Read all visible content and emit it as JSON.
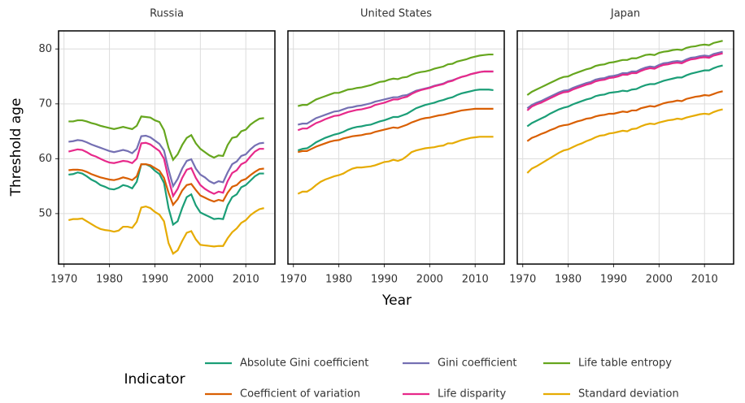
{
  "chart_data": {
    "type": "line",
    "facets": [
      "Russia",
      "United States",
      "Japan"
    ],
    "x_label": "Year",
    "y_label": "Threshold age",
    "legend_title": "Indicator",
    "legend": "bottom",
    "grid": true,
    "xlim": [
      1968.8,
      2016.4
    ],
    "ylim": [
      40.8,
      83.3
    ],
    "xticks": [
      1970,
      1980,
      1990,
      2000,
      2010
    ],
    "yticks": [
      50,
      60,
      70,
      80
    ],
    "x": [
      1971,
      1972,
      1973,
      1974,
      1975,
      1976,
      1977,
      1978,
      1979,
      1980,
      1981,
      1982,
      1983,
      1984,
      1985,
      1986,
      1987,
      1988,
      1989,
      1990,
      1991,
      1992,
      1993,
      1994,
      1995,
      1996,
      1997,
      1998,
      1999,
      2000,
      2001,
      2002,
      2003,
      2004,
      2005,
      2006,
      2007,
      2008,
      2009,
      2010,
      2011,
      2012,
      2013,
      2014
    ],
    "series": [
      {
        "name": "Absolute Gini coefficient",
        "color": "#1b9e77",
        "values": [
          [
            57.1,
            57.2,
            57.5,
            57.3,
            56.8,
            56.2,
            55.8,
            55.2,
            54.9,
            54.5,
            54.4,
            54.7,
            55.2,
            55.0,
            54.6,
            55.8,
            59.0,
            59.0,
            58.6,
            57.8,
            57.2,
            55.6,
            51.0,
            48.0,
            48.6,
            51.0,
            53.0,
            53.5,
            51.5,
            50.2,
            49.8,
            49.4,
            49.0,
            49.1,
            49.0,
            51.5,
            53.0,
            53.5,
            54.8,
            55.2,
            56.0,
            56.8,
            57.3,
            57.3
          ],
          [
            61.5,
            61.8,
            61.9,
            62.4,
            63.0,
            63.4,
            63.8,
            64.1,
            64.4,
            64.6,
            64.9,
            65.3,
            65.6,
            65.8,
            65.9,
            66.1,
            66.2,
            66.5,
            66.8,
            67.0,
            67.3,
            67.6,
            67.6,
            67.9,
            68.2,
            68.7,
            69.2,
            69.5,
            69.8,
            70.0,
            70.2,
            70.5,
            70.7,
            71.0,
            71.2,
            71.6,
            71.9,
            72.1,
            72.3,
            72.5,
            72.6,
            72.6,
            72.6,
            72.5
          ],
          [
            65.9,
            66.5,
            66.9,
            67.3,
            67.7,
            68.2,
            68.6,
            69.0,
            69.3,
            69.5,
            69.9,
            70.2,
            70.5,
            70.8,
            71.0,
            71.4,
            71.6,
            71.7,
            72.0,
            72.1,
            72.2,
            72.4,
            72.3,
            72.6,
            72.7,
            73.1,
            73.4,
            73.6,
            73.6,
            73.9,
            74.2,
            74.4,
            74.6,
            74.8,
            74.8,
            75.2,
            75.5,
            75.7,
            75.9,
            76.1,
            76.1,
            76.5,
            76.8,
            77.0
          ]
        ]
      },
      {
        "name": "Coefficient of variation",
        "color": "#d95f02",
        "values": [
          [
            57.9,
            58.0,
            58.0,
            57.9,
            57.6,
            57.2,
            56.9,
            56.6,
            56.4,
            56.2,
            56.1,
            56.3,
            56.6,
            56.4,
            56.1,
            56.8,
            59.0,
            59.0,
            58.8,
            58.3,
            57.8,
            56.5,
            53.8,
            51.6,
            52.6,
            54.2,
            55.2,
            55.4,
            54.3,
            53.3,
            52.9,
            52.5,
            52.2,
            52.5,
            52.3,
            53.8,
            54.9,
            55.2,
            56.0,
            56.3,
            57.0,
            57.6,
            58.1,
            58.2
          ],
          [
            61.2,
            61.4,
            61.4,
            61.8,
            62.2,
            62.5,
            62.8,
            63.1,
            63.3,
            63.4,
            63.7,
            63.9,
            64.1,
            64.2,
            64.3,
            64.5,
            64.6,
            64.9,
            65.1,
            65.3,
            65.5,
            65.7,
            65.6,
            65.9,
            66.2,
            66.6,
            66.9,
            67.2,
            67.4,
            67.5,
            67.7,
            67.9,
            68.0,
            68.2,
            68.4,
            68.6,
            68.8,
            68.9,
            69.0,
            69.1,
            69.1,
            69.1,
            69.1,
            69.1
          ],
          [
            63.2,
            63.8,
            64.1,
            64.5,
            64.8,
            65.2,
            65.5,
            65.9,
            66.1,
            66.2,
            66.5,
            66.8,
            67.0,
            67.3,
            67.4,
            67.7,
            67.9,
            68.0,
            68.2,
            68.2,
            68.4,
            68.6,
            68.5,
            68.8,
            68.8,
            69.2,
            69.4,
            69.6,
            69.5,
            69.8,
            70.1,
            70.3,
            70.4,
            70.6,
            70.5,
            70.9,
            71.1,
            71.3,
            71.4,
            71.6,
            71.5,
            71.8,
            72.1,
            72.3
          ]
        ]
      },
      {
        "name": "Gini coefficient",
        "color": "#7570b3",
        "values": [
          [
            63.1,
            63.2,
            63.4,
            63.3,
            63.0,
            62.6,
            62.3,
            62.0,
            61.7,
            61.4,
            61.2,
            61.4,
            61.6,
            61.4,
            61.0,
            61.8,
            64.1,
            64.2,
            63.9,
            63.3,
            62.7,
            61.5,
            58.0,
            55.0,
            56.3,
            58.2,
            59.6,
            59.9,
            58.2,
            57.1,
            56.6,
            55.9,
            55.5,
            55.9,
            55.7,
            57.5,
            59.0,
            59.5,
            60.5,
            60.8,
            61.7,
            62.4,
            62.8,
            62.9
          ],
          [
            66.2,
            66.4,
            66.4,
            66.9,
            67.4,
            67.7,
            68.0,
            68.3,
            68.6,
            68.7,
            69.0,
            69.3,
            69.4,
            69.6,
            69.7,
            69.9,
            70.1,
            70.4,
            70.6,
            70.8,
            71.0,
            71.2,
            71.2,
            71.5,
            71.6,
            72.0,
            72.4,
            72.6,
            72.8,
            73.0,
            73.3,
            73.5,
            73.7,
            74.1,
            74.3,
            74.6,
            74.9,
            75.1,
            75.4,
            75.6,
            75.8,
            75.9,
            75.9,
            75.9
          ],
          [
            69.2,
            69.8,
            70.2,
            70.5,
            70.9,
            71.3,
            71.7,
            72.1,
            72.4,
            72.5,
            72.9,
            73.2,
            73.5,
            73.8,
            74.0,
            74.4,
            74.6,
            74.7,
            75.0,
            75.1,
            75.3,
            75.6,
            75.6,
            75.9,
            75.9,
            76.3,
            76.6,
            76.8,
            76.7,
            77.1,
            77.4,
            77.5,
            77.7,
            77.8,
            77.7,
            78.1,
            78.4,
            78.5,
            78.7,
            78.8,
            78.7,
            79.1,
            79.3,
            79.5
          ]
        ]
      },
      {
        "name": "Life disparity",
        "color": "#e7298a",
        "values": [
          [
            61.3,
            61.5,
            61.7,
            61.6,
            61.2,
            60.7,
            60.4,
            60.0,
            59.6,
            59.3,
            59.2,
            59.4,
            59.6,
            59.5,
            59.2,
            60.0,
            62.8,
            62.9,
            62.6,
            62.0,
            61.4,
            60.0,
            56.3,
            53.2,
            54.5,
            56.5,
            58.0,
            58.3,
            56.5,
            55.2,
            54.5,
            54.0,
            53.6,
            54.0,
            53.8,
            55.9,
            57.4,
            57.9,
            59.0,
            59.4,
            60.4,
            61.3,
            61.8,
            61.8
          ],
          [
            65.2,
            65.5,
            65.5,
            66.0,
            66.5,
            66.8,
            67.2,
            67.5,
            67.8,
            67.9,
            68.2,
            68.5,
            68.7,
            68.9,
            69.0,
            69.2,
            69.4,
            69.8,
            70.0,
            70.2,
            70.5,
            70.8,
            70.8,
            71.1,
            71.3,
            71.8,
            72.2,
            72.5,
            72.7,
            72.9,
            73.2,
            73.4,
            73.6,
            74.0,
            74.2,
            74.6,
            74.9,
            75.1,
            75.4,
            75.6,
            75.8,
            75.9,
            75.9,
            75.9
          ],
          [
            68.8,
            69.5,
            69.9,
            70.2,
            70.6,
            71.0,
            71.4,
            71.8,
            72.1,
            72.2,
            72.6,
            72.9,
            73.2,
            73.5,
            73.7,
            74.1,
            74.3,
            74.4,
            74.7,
            74.8,
            75.0,
            75.3,
            75.3,
            75.6,
            75.6,
            76.0,
            76.3,
            76.5,
            76.4,
            76.8,
            77.1,
            77.2,
            77.4,
            77.5,
            77.4,
            77.8,
            78.1,
            78.2,
            78.4,
            78.5,
            78.4,
            78.8,
            79.0,
            79.2
          ]
        ]
      },
      {
        "name": "Life table entropy",
        "color": "#66a61e",
        "values": [
          [
            66.8,
            66.8,
            67.0,
            67.0,
            66.8,
            66.5,
            66.3,
            66.0,
            65.8,
            65.6,
            65.4,
            65.6,
            65.8,
            65.6,
            65.4,
            66.0,
            67.7,
            67.6,
            67.5,
            67.0,
            66.7,
            65.2,
            62.0,
            59.8,
            60.8,
            62.5,
            63.8,
            64.3,
            62.8,
            61.8,
            61.2,
            60.6,
            60.2,
            60.6,
            60.5,
            62.5,
            63.8,
            64.0,
            65.0,
            65.3,
            66.2,
            66.8,
            67.3,
            67.4
          ],
          [
            69.6,
            69.8,
            69.8,
            70.3,
            70.8,
            71.1,
            71.4,
            71.7,
            72.0,
            72.0,
            72.3,
            72.6,
            72.7,
            72.9,
            73.0,
            73.2,
            73.4,
            73.7,
            74.0,
            74.1,
            74.4,
            74.6,
            74.5,
            74.8,
            74.9,
            75.3,
            75.6,
            75.8,
            75.9,
            76.1,
            76.4,
            76.6,
            76.8,
            77.2,
            77.3,
            77.7,
            77.9,
            78.1,
            78.4,
            78.6,
            78.8,
            78.9,
            79.0,
            79.0
          ],
          [
            71.6,
            72.2,
            72.6,
            73.0,
            73.4,
            73.8,
            74.2,
            74.6,
            74.9,
            75.0,
            75.4,
            75.7,
            76.0,
            76.3,
            76.5,
            76.9,
            77.1,
            77.2,
            77.5,
            77.6,
            77.8,
            78.0,
            78.0,
            78.3,
            78.3,
            78.6,
            78.9,
            79.0,
            78.9,
            79.3,
            79.5,
            79.6,
            79.8,
            79.9,
            79.8,
            80.2,
            80.4,
            80.5,
            80.7,
            80.8,
            80.7,
            81.1,
            81.3,
            81.5
          ]
        ]
      },
      {
        "name": "Standard deviation",
        "color": "#e6ab02",
        "values": [
          [
            48.8,
            49.0,
            49.0,
            49.1,
            48.6,
            48.1,
            47.6,
            47.2,
            47.0,
            46.9,
            46.7,
            46.9,
            47.6,
            47.6,
            47.4,
            48.5,
            51.1,
            51.3,
            51.0,
            50.3,
            49.8,
            48.6,
            44.6,
            42.7,
            43.3,
            45.0,
            46.5,
            46.8,
            45.3,
            44.3,
            44.2,
            44.1,
            44.0,
            44.1,
            44.1,
            45.5,
            46.6,
            47.3,
            48.3,
            48.8,
            49.7,
            50.3,
            50.8,
            51.0
          ],
          [
            53.6,
            54.0,
            54.0,
            54.5,
            55.2,
            55.8,
            56.2,
            56.5,
            56.8,
            57.0,
            57.3,
            57.8,
            58.2,
            58.4,
            58.4,
            58.5,
            58.6,
            58.8,
            59.1,
            59.4,
            59.5,
            59.8,
            59.6,
            59.9,
            60.5,
            61.2,
            61.5,
            61.7,
            61.9,
            62.0,
            62.1,
            62.3,
            62.4,
            62.8,
            62.8,
            63.1,
            63.4,
            63.6,
            63.8,
            63.9,
            64.0,
            64.0,
            64.0,
            64.0
          ],
          [
            57.4,
            58.2,
            58.6,
            59.1,
            59.6,
            60.1,
            60.6,
            61.1,
            61.5,
            61.7,
            62.1,
            62.5,
            62.8,
            63.2,
            63.5,
            63.9,
            64.2,
            64.3,
            64.6,
            64.7,
            64.9,
            65.1,
            65.0,
            65.4,
            65.5,
            65.9,
            66.2,
            66.4,
            66.3,
            66.6,
            66.8,
            67.0,
            67.1,
            67.3,
            67.2,
            67.5,
            67.7,
            67.9,
            68.1,
            68.2,
            68.1,
            68.5,
            68.8,
            69.0
          ]
        ]
      }
    ]
  }
}
